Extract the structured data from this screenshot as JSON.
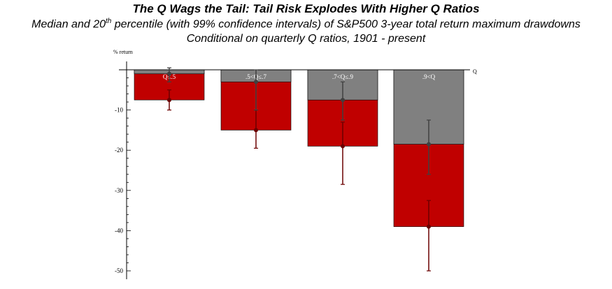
{
  "title": "The Q Wags the Tail: Tail Risk Explodes With Higher Q Ratios",
  "subtitle_pre": "Median and 20",
  "subtitle_sup": "th",
  "subtitle_post": " percentile (with 99% confidence intervals) of S&P500 3-year total return maximum drawdowns",
  "subtitle2": "Conditional on quarterly Q ratios, 1901 - present",
  "chart_data": {
    "type": "bar",
    "ylabel": "% return",
    "xlabel": "Q",
    "ylim": [
      -50,
      0
    ],
    "yticks": [
      -10,
      -20,
      -30,
      -40,
      -50
    ],
    "categories": [
      "Q≤.5",
      ".5<Q≤.7",
      ".7<Q≤.9",
      ".9<Q"
    ],
    "series": [
      {
        "role": "median",
        "color": "#808080",
        "values": [
          -1.0,
          -3.0,
          -7.5,
          -18.5
        ],
        "ci_low": [
          -3.0,
          -10.0,
          -12.5,
          -26.0
        ],
        "ci_high": [
          0.5,
          0.0,
          -3.0,
          -12.5
        ]
      },
      {
        "role": "20th percentile",
        "color": "#c00000",
        "values": [
          -7.5,
          -15.0,
          -19.0,
          -39.0
        ],
        "ci_low": [
          -10.0,
          -19.5,
          -28.5,
          -50.0
        ],
        "ci_high": [
          -5.0,
          -10.0,
          -13.0,
          -32.5
        ]
      }
    ],
    "grid": false,
    "legend": "none"
  }
}
